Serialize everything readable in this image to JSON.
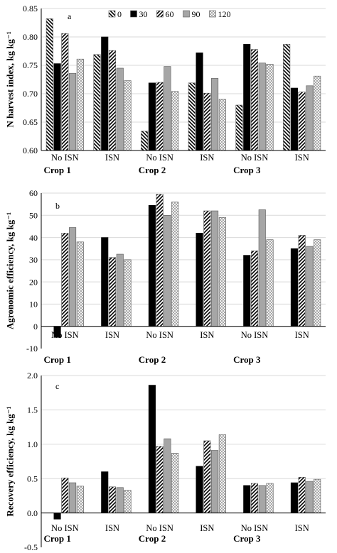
{
  "legend": {
    "entries": [
      "0",
      "30",
      "60",
      "90",
      "120"
    ]
  },
  "series_fills": {
    "0": "diag-left",
    "30": "#000000",
    "60": "diag-right",
    "90": "#a6a6a6",
    "120": "crosshatch"
  },
  "chart_data": [
    {
      "type": "bar",
      "panel_label": "a",
      "ylabel": "N harvest index, kg kg⁻¹",
      "ylim": [
        0.6,
        0.85
      ],
      "yticks": [
        0.6,
        0.65,
        0.7,
        0.75,
        0.8,
        0.85
      ],
      "tick_decimals": 2,
      "legend_position": "top-inside",
      "categories": [
        "No ISN",
        "ISN",
        "No ISN",
        "ISN",
        "No ISN",
        "ISN"
      ],
      "groups": [
        "Crop 1",
        "Crop 2",
        "Crop 3"
      ],
      "series": [
        {
          "name": "0",
          "values": [
            0.832,
            0.769,
            0.634,
            0.719,
            0.68,
            0.787
          ]
        },
        {
          "name": "30",
          "values": [
            0.753,
            0.8,
            0.719,
            0.772,
            0.787,
            0.71
          ]
        },
        {
          "name": "60",
          "values": [
            0.806,
            0.776,
            0.72,
            0.701,
            0.778,
            0.703
          ]
        },
        {
          "name": "90",
          "values": [
            0.736,
            0.745,
            0.748,
            0.727,
            0.754,
            0.714
          ]
        },
        {
          "name": "120",
          "values": [
            0.761,
            0.723,
            0.704,
            0.69,
            0.752,
            0.731
          ]
        }
      ]
    },
    {
      "type": "bar",
      "panel_label": "b",
      "ylabel": "Agronomic efficiency, kg kg⁻¹",
      "ylim": [
        -10,
        60
      ],
      "yticks": [
        -10,
        0,
        10,
        20,
        30,
        40,
        50,
        60
      ],
      "tick_decimals": 0,
      "categories": [
        "No ISN",
        "ISN",
        "No ISN",
        "ISN",
        "No ISN",
        "ISN"
      ],
      "groups": [
        "Crop 1",
        "Crop 2",
        "Crop 3"
      ],
      "series": [
        {
          "name": "30",
          "values": [
            -5,
            40,
            54.5,
            42,
            32,
            35
          ]
        },
        {
          "name": "60",
          "values": [
            42,
            31,
            59.5,
            52,
            34,
            41
          ]
        },
        {
          "name": "90",
          "values": [
            44.5,
            32.5,
            50,
            52,
            52.5,
            36
          ]
        },
        {
          "name": "120",
          "values": [
            38,
            30,
            56,
            49,
            39,
            39
          ]
        }
      ]
    },
    {
      "type": "bar",
      "panel_label": "c",
      "ylabel": "Recovery efficiency, kg kg⁻¹",
      "ylim": [
        -0.5,
        2.0
      ],
      "yticks": [
        -0.5,
        0,
        0.5,
        1.0,
        1.5,
        2.0
      ],
      "tick_decimals": 1,
      "categories": [
        "No ISN",
        "ISN",
        "No ISN",
        "ISN",
        "No ISN",
        "ISN"
      ],
      "groups": [
        "Crop 1",
        "Crop 2",
        "Crop 3"
      ],
      "series": [
        {
          "name": "30",
          "values": [
            -0.09,
            0.6,
            1.86,
            0.68,
            0.4,
            0.44
          ]
        },
        {
          "name": "60",
          "values": [
            0.51,
            0.38,
            0.97,
            1.05,
            0.43,
            0.52
          ]
        },
        {
          "name": "90",
          "values": [
            0.44,
            0.37,
            1.08,
            0.91,
            0.4,
            0.46
          ]
        },
        {
          "name": "120",
          "values": [
            0.39,
            0.33,
            0.87,
            1.14,
            0.43,
            0.49
          ]
        }
      ]
    }
  ]
}
